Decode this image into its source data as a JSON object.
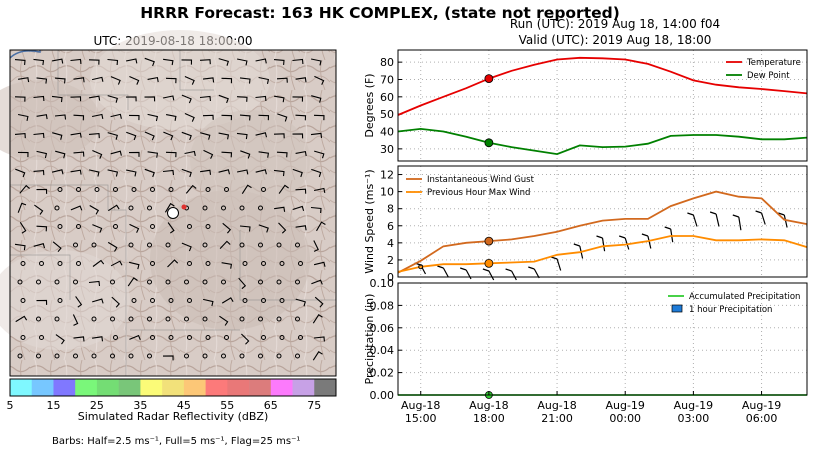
{
  "figure": {
    "suptitle": "HRRR Forecast: 163 HK COMPLEX, (state not reported)",
    "run_label": "Run (UTC): 2019 Aug 18, 14:00 f04",
    "valid_label": "Valid (UTC): 2019 Aug 18, 18:00",
    "barb_note": "Barbs: Half=2.5 ms⁻¹, Full=5 ms⁻¹, Flag=25 ms⁻¹"
  },
  "map": {
    "title": "UTC: 2019-08-18 18:00:00",
    "colorbar_title": "Simulated Radar Reflectivity (dBZ)",
    "colorbar_colors": [
      "#7ff8ff",
      "#77c7ff",
      "#8078ff",
      "#7af77a",
      "#74dd74",
      "#79c679",
      "#fbfb78",
      "#f2e17a",
      "#fcc777",
      "#fc7a7a",
      "#e97878",
      "#dc7c7c",
      "#fc7afc",
      "#c7a1e6",
      "#7a7a7a"
    ],
    "colorbar_ticks": [
      "5",
      "15",
      "25",
      "35",
      "45",
      "55",
      "65",
      "75"
    ]
  },
  "chart_data": [
    {
      "type": "line",
      "ylabel": "Degrees (F)",
      "ylim": [
        23,
        87
      ],
      "yticks": [
        "30",
        "40",
        "50",
        "60",
        "70",
        "80"
      ],
      "x": [
        "Aug-18 14:00",
        "Aug-18 15:00",
        "Aug-18 16:00",
        "Aug-18 17:00",
        "Aug-18 18:00",
        "Aug-18 19:00",
        "Aug-18 20:00",
        "Aug-18 21:00",
        "Aug-18 22:00",
        "Aug-18 23:00",
        "Aug-19 00:00",
        "Aug-19 01:00",
        "Aug-19 02:00",
        "Aug-19 03:00",
        "Aug-19 04:00",
        "Aug-19 05:00",
        "Aug-19 06:00",
        "Aug-19 07:00",
        "Aug-19 08:00"
      ],
      "series": [
        {
          "name": "Temperature",
          "color": "#e60000",
          "values": [
            49.5,
            55,
            60,
            65,
            70.5,
            75,
            78.5,
            81.5,
            82.5,
            82.2,
            81.5,
            79,
            74.5,
            69.5,
            67,
            65.5,
            64.5,
            63.3,
            62
          ]
        },
        {
          "name": "Dew Point",
          "color": "#008000",
          "values": [
            40,
            41.5,
            40,
            37,
            33.5,
            31,
            29,
            27,
            32,
            31,
            31.3,
            33,
            37.5,
            38,
            38,
            37,
            35.5,
            35.5,
            36.5
          ]
        }
      ],
      "highlight_x": "Aug-18 18:00",
      "legend_position": "top-right",
      "grid": true
    },
    {
      "type": "line",
      "ylabel": "Wind Speed (ms⁻¹)",
      "ylim": [
        0,
        13
      ],
      "yticks": [
        "0",
        "2",
        "4",
        "6",
        "8",
        "10",
        "12"
      ],
      "x": [
        "Aug-18 14:00",
        "Aug-18 15:00",
        "Aug-18 16:00",
        "Aug-18 17:00",
        "Aug-18 18:00",
        "Aug-18 19:00",
        "Aug-18 20:00",
        "Aug-18 21:00",
        "Aug-18 22:00",
        "Aug-18 23:00",
        "Aug-19 00:00",
        "Aug-19 01:00",
        "Aug-19 02:00",
        "Aug-19 03:00",
        "Aug-19 04:00",
        "Aug-19 05:00",
        "Aug-19 06:00",
        "Aug-19 07:00",
        "Aug-19 08:00"
      ],
      "series": [
        {
          "name": "Instantaneous Wind Gust",
          "color": "#d2691e",
          "values": [
            0.5,
            1.9,
            3.6,
            4.0,
            4.2,
            4.4,
            4.8,
            5.3,
            6.0,
            6.6,
            6.8,
            6.8,
            8.3,
            9.2,
            10.0,
            9.4,
            9.2,
            6.7,
            6.2
          ]
        },
        {
          "name": "Previous Hour Max Wind",
          "color": "#ff8c00",
          "values": [
            0.6,
            1.2,
            1.5,
            1.5,
            1.6,
            1.7,
            1.8,
            2.6,
            2.9,
            3.6,
            3.8,
            4.2,
            4.8,
            4.8,
            4.3,
            4.3,
            4.4,
            4.3,
            3.5
          ]
        }
      ],
      "barb_times": [
        "Aug-18 15:00",
        "Aug-18 16:00",
        "Aug-18 17:00",
        "Aug-18 18:00",
        "Aug-18 19:00",
        "Aug-18 20:00",
        "Aug-18 21:00",
        "Aug-18 22:00",
        "Aug-18 23:00",
        "Aug-19 00:00",
        "Aug-19 01:00",
        "Aug-19 02:00",
        "Aug-19 03:00",
        "Aug-19 04:00",
        "Aug-19 05:00",
        "Aug-19 06:00",
        "Aug-19 07:00"
      ],
      "highlight_x": "Aug-18 18:00",
      "legend_position": "top-left",
      "grid": true
    },
    {
      "type": "bar",
      "ylabel": "Precipitation (in)",
      "ylim": [
        0,
        0.1
      ],
      "yticks": [
        "0.00",
        "0.02",
        "0.04",
        "0.06",
        "0.08",
        "0.10"
      ],
      "x": [
        "Aug-18 14:00",
        "Aug-18 15:00",
        "Aug-18 16:00",
        "Aug-18 17:00",
        "Aug-18 18:00",
        "Aug-18 19:00",
        "Aug-18 20:00",
        "Aug-18 21:00",
        "Aug-18 22:00",
        "Aug-18 23:00",
        "Aug-19 00:00",
        "Aug-19 01:00",
        "Aug-19 02:00",
        "Aug-19 03:00",
        "Aug-19 04:00",
        "Aug-19 05:00",
        "Aug-19 06:00",
        "Aug-19 07:00",
        "Aug-19 08:00"
      ],
      "series": [
        {
          "name": "Accumulated Precipitation",
          "color": "#33cc33",
          "values": [
            0,
            0,
            0,
            0,
            0,
            0,
            0,
            0,
            0,
            0,
            0,
            0,
            0,
            0,
            0,
            0,
            0,
            0,
            0
          ]
        },
        {
          "name": "1 hour Precipitation",
          "color": "#1e7bd8",
          "values": [
            0,
            0,
            0,
            0,
            0,
            0,
            0,
            0,
            0,
            0,
            0,
            0,
            0,
            0,
            0,
            0,
            0,
            0,
            0
          ]
        }
      ],
      "highlight_x": "Aug-18 18:00",
      "legend_position": "top-right",
      "grid": true,
      "xtick_labels": [
        {
          "top": "Aug-18",
          "bottom": "15:00"
        },
        {
          "top": "Aug-18",
          "bottom": "18:00"
        },
        {
          "top": "Aug-18",
          "bottom": "21:00"
        },
        {
          "top": "Aug-19",
          "bottom": "00:00"
        },
        {
          "top": "Aug-19",
          "bottom": "03:00"
        },
        {
          "top": "Aug-19",
          "bottom": "06:00"
        }
      ]
    }
  ]
}
